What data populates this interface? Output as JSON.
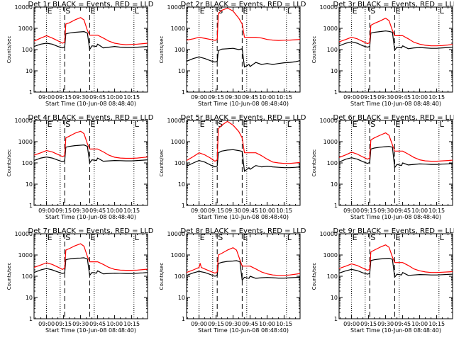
{
  "chart_data": {
    "type": "line",
    "xlabel": "Start Time (10-Jun-08 08:48:40)",
    "ylabel": "Counts/sec",
    "x_tick_labels": [
      "09:00",
      "09:15",
      "09:30",
      "09:45",
      "10:00",
      "10:15"
    ],
    "x_ticks_min": [
      0,
      15,
      30,
      45,
      60,
      75
    ],
    "x_range_min": [
      -11,
      89
    ],
    "y_scale": "log",
    "ylim": [
      1,
      10000
    ],
    "y_tick_labels": [
      "1",
      "10",
      "100",
      "1000",
      "10000"
    ],
    "y_tick_values": [
      1,
      10,
      100,
      1000,
      10000
    ],
    "dotted_lines_min": [
      0,
      12,
      42,
      77
    ],
    "dashed_lines_min": [
      16,
      38
    ],
    "marker_labels": [
      {
        "text": "E",
        "at_min": 0
      },
      {
        "text": "S",
        "at_min": 16
      },
      {
        "text": "E",
        "at_min": 38
      },
      {
        "text": "L",
        "at_min": 77
      }
    ],
    "series_colors": {
      "events": "#000000",
      "lld": "#ff0000"
    },
    "panels": [
      {
        "title": "Det 1r BLACK = Events, RED = LLD",
        "events": {
          "x": [
            -11,
            -5,
            0,
            5,
            10,
            14,
            16,
            17,
            20,
            25,
            30,
            33,
            36,
            38,
            40,
            44,
            45,
            50,
            55,
            60,
            65,
            70,
            75,
            80,
            85,
            89
          ],
          "y": [
            140,
            180,
            200,
            180,
            140,
            120,
            130,
            550,
            600,
            650,
            680,
            700,
            600,
            100,
            150,
            140,
            180,
            120,
            130,
            140,
            130,
            125,
            125,
            130,
            135,
            140
          ]
        },
        "lld": {
          "x": [
            -11,
            -5,
            0,
            5,
            10,
            14,
            16,
            17,
            20,
            25,
            30,
            33,
            36,
            38,
            40,
            45,
            50,
            55,
            60,
            65,
            70,
            75,
            80,
            85,
            89
          ],
          "y": [
            250,
            350,
            450,
            350,
            260,
            200,
            220,
            1600,
            1800,
            2500,
            3200,
            2500,
            800,
            480,
            480,
            480,
            350,
            250,
            200,
            180,
            170,
            175,
            180,
            190,
            200
          ]
        }
      },
      {
        "title": "Det 2r BLACK = Events, RED = LLD",
        "events": {
          "x": [
            -11,
            -5,
            0,
            5,
            10,
            14,
            16,
            17,
            20,
            25,
            30,
            35,
            38,
            40,
            44,
            45,
            50,
            55,
            60,
            65,
            70,
            75,
            80,
            85,
            89
          ],
          "y": [
            28,
            38,
            45,
            38,
            30,
            26,
            28,
            90,
            105,
            110,
            115,
            100,
            110,
            15,
            20,
            16,
            25,
            20,
            22,
            20,
            22,
            24,
            25,
            27,
            30
          ]
        },
        "lld": {
          "x": [
            -11,
            -5,
            0,
            5,
            10,
            14,
            16,
            17,
            20,
            25,
            30,
            35,
            38,
            40,
            45,
            50,
            55,
            60,
            65,
            70,
            75,
            80,
            85,
            89
          ],
          "y": [
            280,
            320,
            380,
            340,
            300,
            270,
            300,
            5000,
            7000,
            9000,
            6500,
            3000,
            1600,
            380,
            380,
            380,
            350,
            300,
            280,
            270,
            275,
            280,
            290,
            300
          ]
        }
      },
      {
        "title": "Det 3r BLACK = Events, RED = LLD",
        "events": {
          "x": [
            -11,
            -5,
            0,
            5,
            10,
            14,
            16,
            17,
            20,
            25,
            30,
            33,
            36,
            38,
            40,
            44,
            45,
            50,
            55,
            60,
            65,
            70,
            75,
            80,
            85,
            89
          ],
          "y": [
            150,
            200,
            230,
            200,
            150,
            130,
            140,
            600,
            650,
            700,
            750,
            720,
            650,
            95,
            130,
            120,
            150,
            110,
            120,
            125,
            120,
            115,
            115,
            120,
            125,
            130
          ]
        },
        "lld": {
          "x": [
            -11,
            -5,
            0,
            5,
            10,
            14,
            16,
            17,
            20,
            25,
            30,
            33,
            36,
            38,
            40,
            45,
            50,
            55,
            60,
            65,
            70,
            75,
            80,
            85,
            89
          ],
          "y": [
            230,
            300,
            380,
            320,
            240,
            190,
            210,
            1400,
            1700,
            2200,
            3000,
            2300,
            800,
            450,
            450,
            450,
            320,
            220,
            180,
            160,
            150,
            150,
            155,
            165,
            175
          ]
        }
      },
      {
        "title": "Det 4r BLACK = Events, RED = LLD",
        "events": {
          "x": [
            -11,
            -5,
            0,
            5,
            10,
            14,
            16,
            17,
            20,
            25,
            30,
            33,
            36,
            38,
            40,
            44,
            45,
            50,
            55,
            60,
            65,
            70,
            75,
            80,
            85,
            89
          ],
          "y": [
            130,
            170,
            190,
            170,
            135,
            115,
            125,
            550,
            600,
            650,
            680,
            700,
            600,
            100,
            140,
            130,
            170,
            120,
            125,
            130,
            128,
            125,
            125,
            130,
            135,
            140
          ]
        },
        "lld": {
          "x": [
            -11,
            -5,
            0,
            5,
            10,
            14,
            16,
            17,
            20,
            25,
            30,
            33,
            36,
            38,
            40,
            45,
            50,
            55,
            60,
            65,
            70,
            75,
            80,
            85,
            89
          ],
          "y": [
            230,
            300,
            380,
            330,
            250,
            200,
            220,
            1500,
            1800,
            2500,
            3100,
            2400,
            800,
            450,
            450,
            450,
            330,
            230,
            185,
            170,
            165,
            165,
            170,
            180,
            190
          ]
        }
      },
      {
        "title": "Det 5r BLACK = Events, RED = LLD",
        "events": {
          "x": [
            -11,
            -5,
            0,
            5,
            10,
            14,
            16,
            17,
            20,
            25,
            30,
            35,
            38,
            40,
            44,
            45,
            50,
            55,
            60,
            65,
            70,
            75,
            80,
            85,
            89
          ],
          "y": [
            70,
            100,
            130,
            110,
            80,
            65,
            70,
            300,
            360,
            400,
            420,
            380,
            350,
            40,
            60,
            50,
            75,
            65,
            70,
            65,
            62,
            60,
            60,
            62,
            65
          ]
        },
        "lld": {
          "x": [
            -11,
            -5,
            0,
            5,
            10,
            14,
            16,
            17,
            20,
            25,
            30,
            35,
            38,
            40,
            45,
            50,
            55,
            60,
            65,
            70,
            75,
            80,
            85,
            89
          ],
          "y": [
            130,
            200,
            300,
            240,
            170,
            120,
            140,
            4000,
            6000,
            9000,
            6000,
            3000,
            1500,
            300,
            300,
            300,
            220,
            150,
            110,
            100,
            95,
            95,
            100,
            105
          ]
        }
      },
      {
        "title": "Det 6r BLACK = Events, RED = LLD",
        "events": {
          "x": [
            -11,
            -5,
            0,
            5,
            10,
            14,
            16,
            17,
            20,
            25,
            30,
            33,
            36,
            38,
            40,
            44,
            45,
            50,
            55,
            60,
            65,
            70,
            75,
            80,
            85,
            89
          ],
          "y": [
            110,
            150,
            175,
            150,
            115,
            95,
            105,
            450,
            500,
            550,
            580,
            600,
            550,
            60,
            85,
            75,
            100,
            80,
            85,
            90,
            88,
            85,
            85,
            88,
            90,
            95
          ]
        },
        "lld": {
          "x": [
            -11,
            -5,
            0,
            5,
            10,
            14,
            16,
            17,
            20,
            25,
            30,
            33,
            36,
            38,
            40,
            45,
            50,
            55,
            60,
            65,
            70,
            75,
            80,
            85,
            89
          ],
          "y": [
            180,
            240,
            320,
            260,
            190,
            150,
            170,
            1200,
            1500,
            2000,
            2600,
            2000,
            700,
            360,
            360,
            360,
            260,
            180,
            140,
            125,
            120,
            120,
            125,
            130,
            135
          ]
        }
      },
      {
        "title": "Det 7r BLACK = Events, RED = LLD",
        "events": {
          "x": [
            -11,
            -5,
            0,
            5,
            10,
            14,
            16,
            17,
            20,
            25,
            30,
            33,
            36,
            38,
            40,
            44,
            45,
            50,
            55,
            60,
            65,
            70,
            75,
            80,
            85,
            89
          ],
          "y": [
            150,
            200,
            230,
            200,
            160,
            135,
            145,
            600,
            650,
            700,
            720,
            740,
            650,
            110,
            150,
            140,
            180,
            130,
            135,
            140,
            138,
            135,
            135,
            140,
            145,
            150
          ]
        },
        "lld": {
          "x": [
            -11,
            -5,
            0,
            5,
            10,
            14,
            16,
            17,
            20,
            25,
            30,
            33,
            36,
            38,
            40,
            45,
            50,
            55,
            60,
            65,
            70,
            75,
            80,
            85,
            89
          ],
          "y": [
            260,
            340,
            430,
            360,
            270,
            210,
            240,
            1700,
            2000,
            2700,
            3400,
            2600,
            850,
            480,
            480,
            480,
            360,
            260,
            210,
            195,
            190,
            190,
            195,
            205,
            215
          ]
        }
      },
      {
        "title": "Det 8r BLACK = Events, RED = LLD",
        "events": {
          "x": [
            -11,
            -5,
            0,
            5,
            10,
            14,
            16,
            17,
            20,
            25,
            30,
            33,
            36,
            38,
            40,
            44,
            45,
            50,
            55,
            60,
            65,
            70,
            75,
            80,
            85,
            89
          ],
          "y": [
            110,
            145,
            170,
            150,
            120,
            100,
            110,
            400,
            450,
            500,
            520,
            540,
            480,
            65,
            90,
            80,
            100,
            80,
            85,
            88,
            85,
            82,
            82,
            85,
            88,
            90
          ]
        },
        "lld": {
          "x": [
            -11,
            -5,
            0,
            1,
            2,
            5,
            10,
            14,
            16,
            17,
            20,
            25,
            30,
            33,
            36,
            38,
            40,
            45,
            50,
            55,
            60,
            65,
            70,
            75,
            80,
            85,
            89
          ],
          "y": [
            150,
            200,
            260,
            400,
            260,
            220,
            170,
            140,
            160,
            1000,
            1200,
            1700,
            2200,
            1700,
            600,
            300,
            300,
            300,
            220,
            160,
            130,
            115,
            110,
            110,
            115,
            125,
            135
          ]
        }
      },
      {
        "title": "Det 9r BLACK = Events, RED = LLD",
        "events": {
          "x": [
            -11,
            -5,
            0,
            5,
            10,
            14,
            16,
            17,
            20,
            25,
            30,
            33,
            36,
            38,
            40,
            44,
            45,
            50,
            55,
            60,
            65,
            70,
            75,
            80,
            85,
            89
          ],
          "y": [
            140,
            180,
            210,
            185,
            145,
            125,
            135,
            550,
            600,
            650,
            680,
            700,
            620,
            90,
            125,
            115,
            150,
            110,
            115,
            120,
            118,
            115,
            115,
            118,
            122,
            125
          ]
        },
        "lld": {
          "x": [
            -11,
            -5,
            0,
            5,
            10,
            14,
            16,
            17,
            20,
            25,
            30,
            33,
            36,
            38,
            40,
            45,
            50,
            55,
            60,
            65,
            70,
            75,
            80,
            85,
            89
          ],
          "y": [
            230,
            300,
            380,
            320,
            240,
            190,
            210,
            1400,
            1700,
            2300,
            3000,
            2300,
            800,
            440,
            440,
            440,
            320,
            220,
            180,
            160,
            150,
            150,
            155,
            160,
            165
          ]
        }
      }
    ]
  }
}
